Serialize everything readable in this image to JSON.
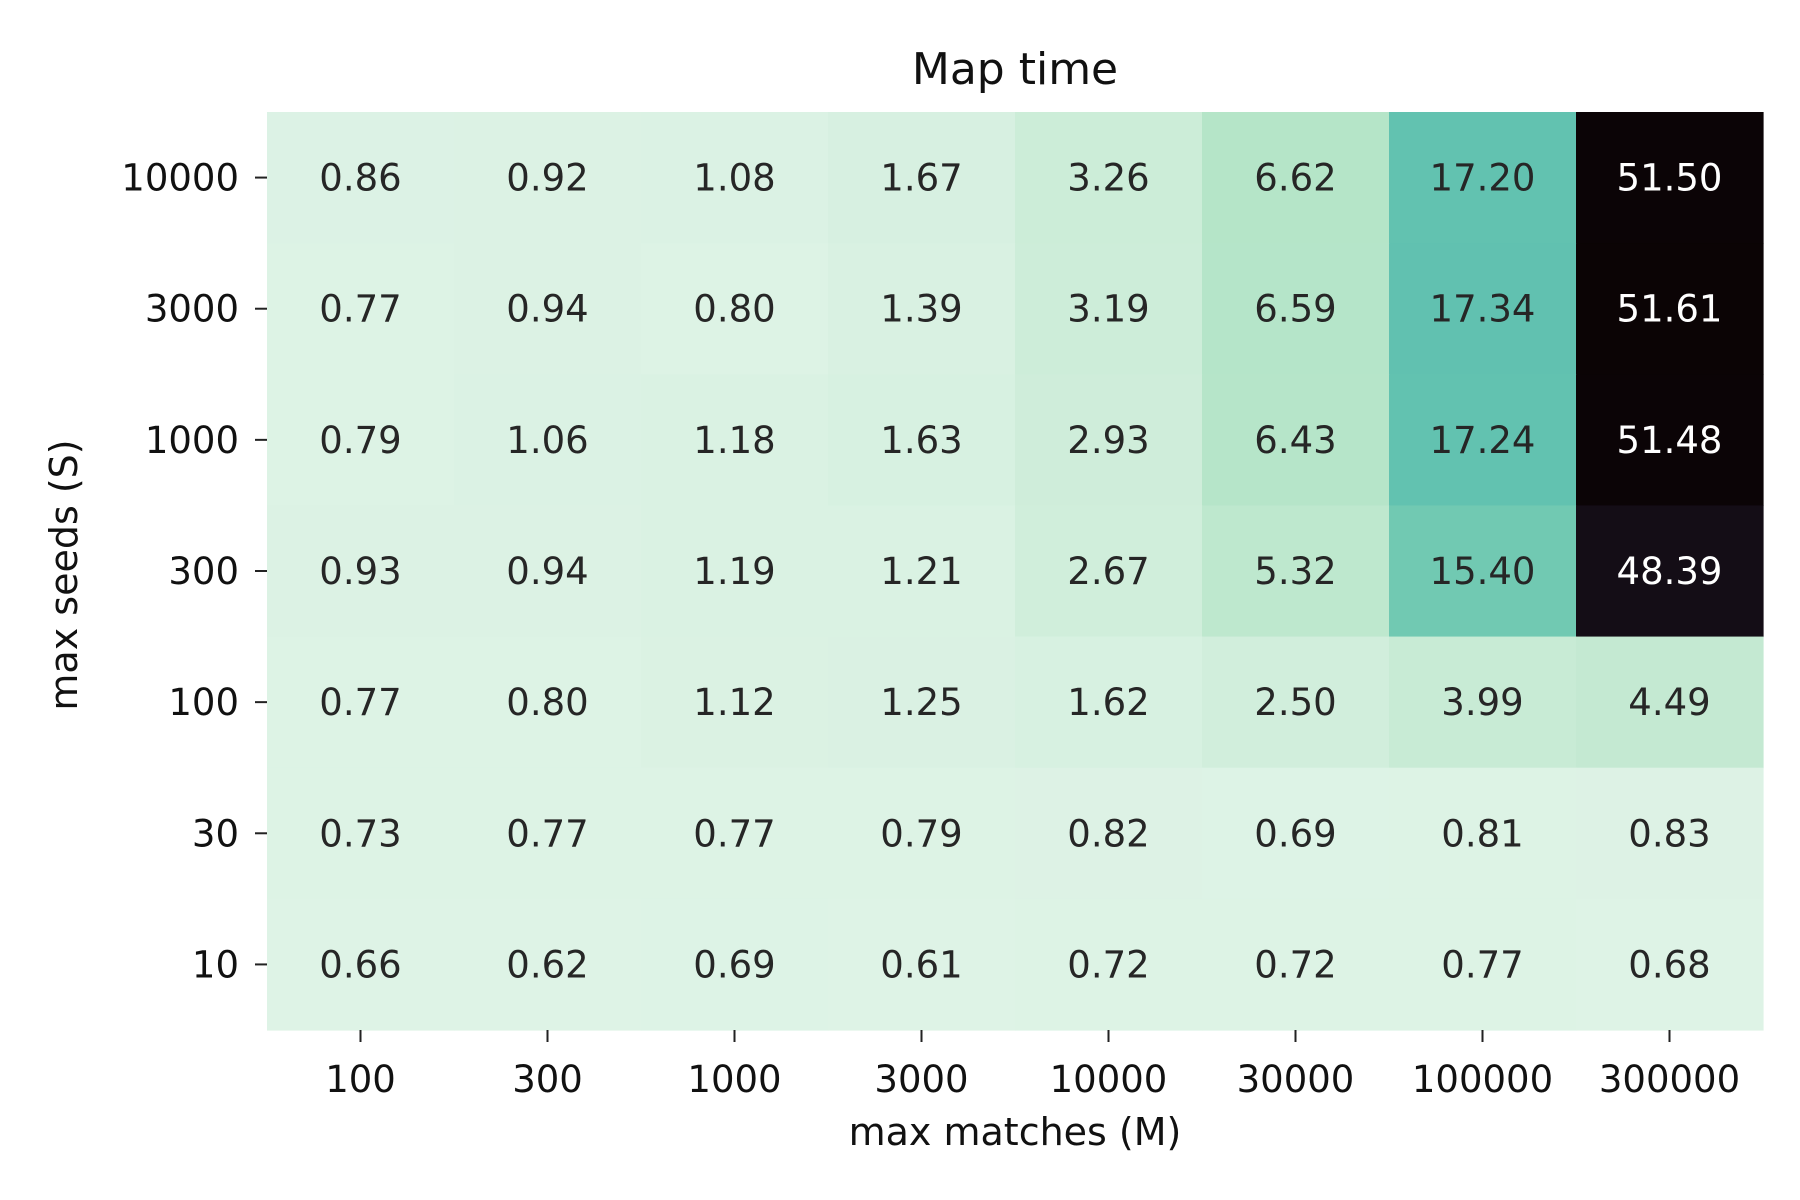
{
  "chart_data": {
    "type": "heatmap",
    "title": "Map time",
    "xlabel": "max matches (M)",
    "ylabel": "max seeds (S)",
    "x_categories": [
      "100",
      "300",
      "1000",
      "3000",
      "10000",
      "30000",
      "100000",
      "300000"
    ],
    "y_categories": [
      "10000",
      "3000",
      "1000",
      "300",
      "100",
      "30",
      "10"
    ],
    "values": [
      [
        0.86,
        0.92,
        1.08,
        1.67,
        3.26,
        6.62,
        17.2,
        51.5
      ],
      [
        0.77,
        0.94,
        0.8,
        1.39,
        3.19,
        6.59,
        17.34,
        51.61
      ],
      [
        0.79,
        1.06,
        1.18,
        1.63,
        2.93,
        6.43,
        17.24,
        51.48
      ],
      [
        0.93,
        0.94,
        1.19,
        1.21,
        2.67,
        5.32,
        15.4,
        48.39
      ],
      [
        0.77,
        0.8,
        1.12,
        1.25,
        1.62,
        2.5,
        3.99,
        4.49
      ],
      [
        0.73,
        0.77,
        0.77,
        0.79,
        0.82,
        0.69,
        0.81,
        0.83
      ],
      [
        0.66,
        0.62,
        0.69,
        0.61,
        0.72,
        0.72,
        0.77,
        0.68
      ]
    ],
    "value_format": "2 decimals",
    "colormap": [
      "#def3e6",
      "#c3e9d1",
      "#97dcb6",
      "#3aaeac",
      "#2a6b86",
      "#1d1626",
      "#0b0405"
    ],
    "grid": false,
    "legend": "none"
  }
}
